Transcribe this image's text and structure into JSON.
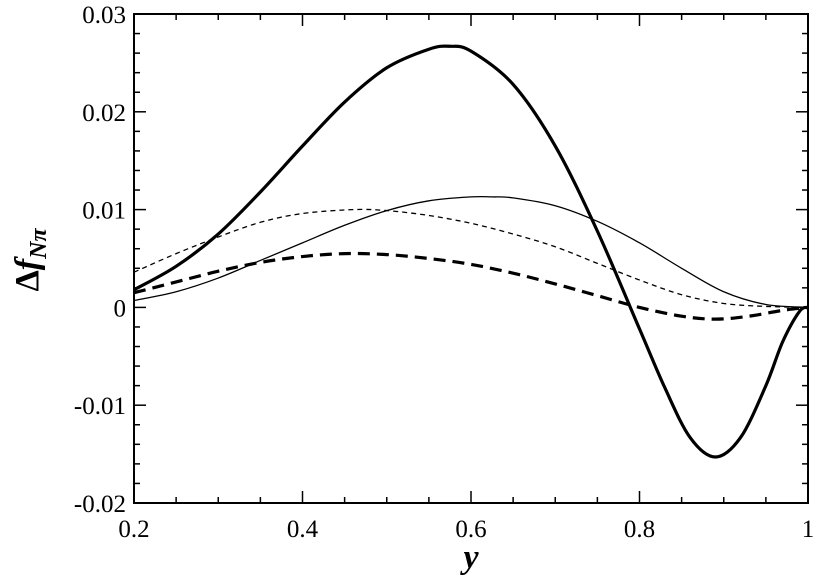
{
  "chart_data": {
    "type": "line",
    "title": "",
    "xlabel": "y",
    "ylabel": {
      "symbol": "Δ",
      "main": "f",
      "subscript": "Nπ"
    },
    "xlim": [
      0.2,
      1.0
    ],
    "ylim": [
      -0.02,
      0.03
    ],
    "x_ticks": [
      0.2,
      0.4,
      0.6,
      0.8,
      1.0
    ],
    "x_tick_labels": [
      "0.2",
      "0.4",
      "0.6",
      "0.8",
      "1"
    ],
    "y_ticks": [
      -0.02,
      -0.01,
      0,
      0.01,
      0.02,
      0.03
    ],
    "y_tick_labels": [
      "-0.02",
      "-0.01",
      "0",
      "0.01",
      "0.02",
      "0.03"
    ],
    "grid": false,
    "legend": "none",
    "series": [
      {
        "style": "thick-solid",
        "color": "#000000",
        "x": [
          0.2,
          0.25,
          0.3,
          0.35,
          0.4,
          0.45,
          0.5,
          0.55,
          0.575,
          0.6,
          0.65,
          0.7,
          0.75,
          0.8,
          0.83,
          0.86,
          0.89,
          0.92,
          0.95,
          0.97,
          0.99,
          1.0
        ],
        "y": [
          0.0018,
          0.0042,
          0.0075,
          0.0118,
          0.0165,
          0.021,
          0.0245,
          0.0264,
          0.0267,
          0.0262,
          0.0228,
          0.0165,
          0.0078,
          -0.0022,
          -0.0082,
          -0.0133,
          -0.0153,
          -0.0133,
          -0.008,
          -0.0035,
          -0.0004,
          0.0
        ]
      },
      {
        "style": "thin-solid",
        "color": "#000000",
        "x": [
          0.2,
          0.25,
          0.3,
          0.35,
          0.4,
          0.45,
          0.5,
          0.55,
          0.6,
          0.625,
          0.65,
          0.7,
          0.75,
          0.8,
          0.85,
          0.9,
          0.95,
          1.0
        ],
        "y": [
          0.0007,
          0.0016,
          0.003,
          0.0048,
          0.0066,
          0.0084,
          0.0099,
          0.0109,
          0.0113,
          0.0113,
          0.0112,
          0.0104,
          0.0088,
          0.0066,
          0.004,
          0.0016,
          0.0003,
          0.0
        ]
      },
      {
        "style": "thin-dashed",
        "color": "#000000",
        "x": [
          0.2,
          0.25,
          0.3,
          0.35,
          0.4,
          0.46,
          0.5,
          0.55,
          0.6,
          0.65,
          0.7,
          0.75,
          0.8,
          0.85,
          0.9,
          0.95,
          1.0
        ],
        "y": [
          0.0036,
          0.0055,
          0.0072,
          0.0087,
          0.0096,
          0.01,
          0.0099,
          0.0094,
          0.0086,
          0.0075,
          0.0062,
          0.0045,
          0.0028,
          0.0013,
          0.0004,
          0.0001,
          0.0
        ]
      },
      {
        "style": "thick-dashed",
        "color": "#000000",
        "x": [
          0.2,
          0.25,
          0.3,
          0.35,
          0.4,
          0.45,
          0.5,
          0.55,
          0.6,
          0.65,
          0.7,
          0.75,
          0.8,
          0.85,
          0.89,
          0.93,
          0.97,
          1.0
        ],
        "y": [
          0.0015,
          0.0026,
          0.0037,
          0.0046,
          0.0052,
          0.0055,
          0.0054,
          0.005,
          0.0044,
          0.0035,
          0.0024,
          0.0012,
          0.0,
          -0.0009,
          -0.0012,
          -0.0009,
          -0.0003,
          0.0
        ]
      }
    ]
  }
}
